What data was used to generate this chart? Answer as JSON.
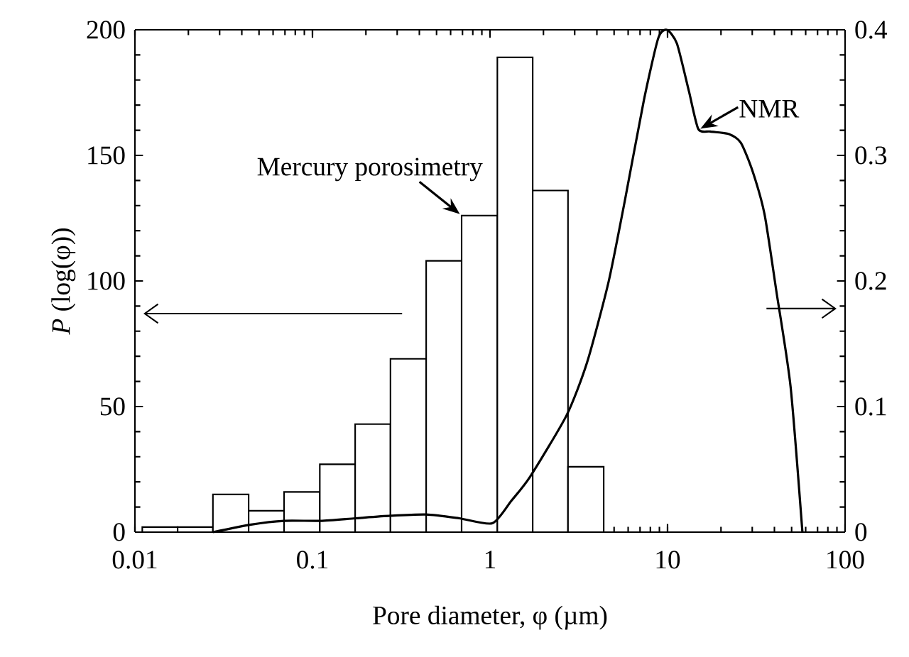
{
  "chart_data": {
    "type": "histogram",
    "xlabel": "Pore diameter, φ (µm)",
    "ylabel": "*P* (log(φ))",
    "log": "x",
    "xlim": [
      0.01,
      100
    ],
    "xticks": [
      0.01,
      0.1,
      1,
      10,
      100
    ],
    "ylim": [
      0,
      200
    ],
    "yticks": [
      0,
      50,
      100,
      150,
      200
    ],
    "y2lim": [
      0,
      0.4
    ],
    "y2ticks": [
      0,
      0.1,
      0.2,
      0.3,
      0.4
    ],
    "series": [
      {
        "color": "#ffffff",
        "bins": [
          0.011,
          0.0174,
          0.0275,
          0.0437,
          0.0692,
          0.11,
          0.174,
          0.275,
          0.437,
          0.692,
          1.1,
          1.74,
          2.75,
          4.37
        ],
        "values": [
          2,
          2,
          15,
          8.5,
          16,
          27,
          43,
          69,
          108,
          126,
          189,
          136,
          26
        ]
      },
      {
        "type": "line",
        "axis": "y2",
        "color": "#000000",
        "x": [
          0.0275,
          0.0451,
          0.0692,
          0.111,
          0.174,
          0.275,
          0.437,
          0.67,
          1.03,
          1.32,
          1.68,
          2.7,
          3.52,
          4.65,
          5.75,
          7.36,
          8.85,
          9.9,
          11.3,
          13.2,
          14.9,
          17.4,
          22.2,
          25.9,
          30.2,
          35.2,
          41.0,
          49.3,
          57.5
        ],
        "values": [
          0,
          0.006,
          0.009,
          0.009,
          0.011,
          0.013,
          0.014,
          0.011,
          0.007,
          0.025,
          0.044,
          0.093,
          0.135,
          0.199,
          0.264,
          0.344,
          0.393,
          0.4,
          0.389,
          0.351,
          0.321,
          0.319,
          0.317,
          0.31,
          0.287,
          0.253,
          0.192,
          0.116,
          0
        ]
      }
    ],
    "annotations": [
      {
        "text": "Mercury porosimetry",
        "x": 0.69,
        "y": 126
      },
      {
        "text": "NMR",
        "x": 15,
        "y": 160
      }
    ]
  }
}
